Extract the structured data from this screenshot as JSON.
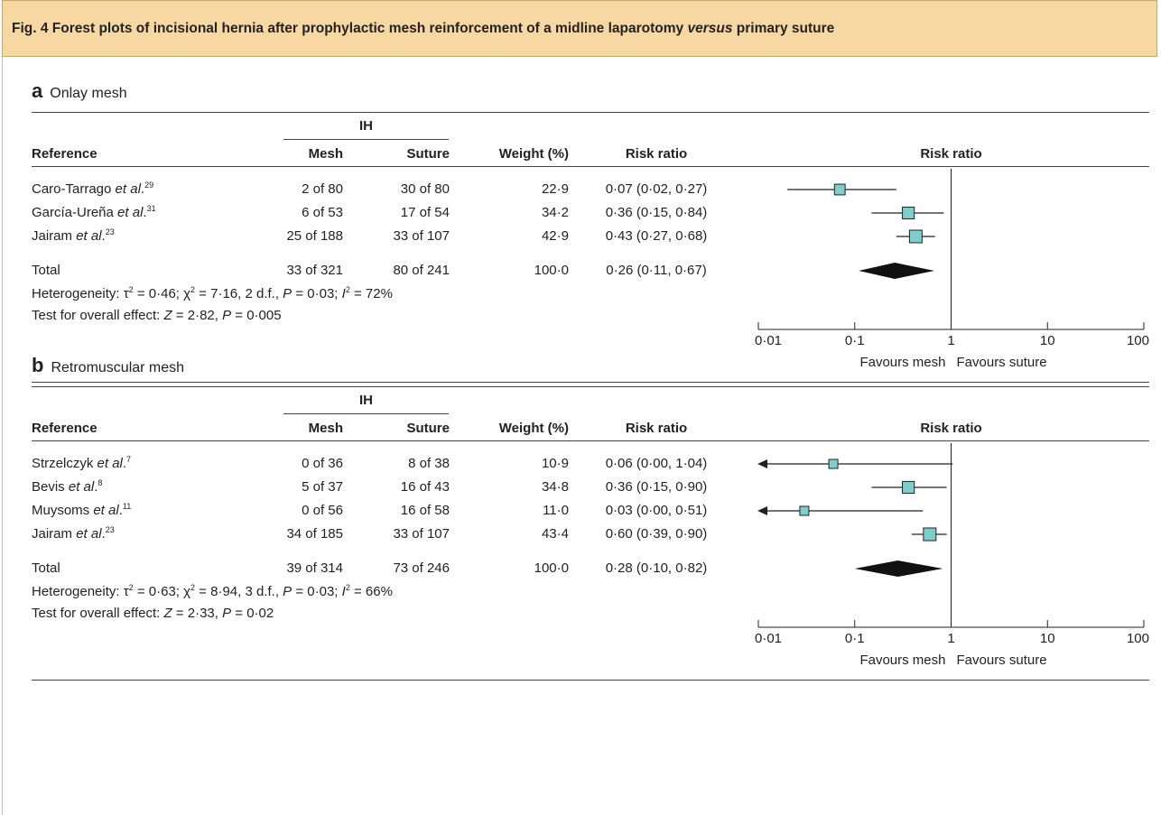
{
  "figure_title": "Fig. 4 Forest plots of incisional hernia after prophylactic mesh reinforcement of a midline laparotomy versus primary suture",
  "colors": {
    "header_band": "#f8d8a2",
    "box_fill": "#7fcdcc",
    "diamond": "#111111"
  },
  "column_headers": {
    "group": "IH",
    "reference": "Reference",
    "mesh": "Mesh",
    "suture": "Suture",
    "weight": "Weight (%)",
    "risk_ratio": "Risk ratio",
    "plot": "Risk ratio"
  },
  "panels": [
    {
      "letter": "a",
      "title": "Onlay mesh",
      "studies": [
        {
          "name": "Caro-Tarrago",
          "ref": "29",
          "mesh": "2 of 80",
          "suture": "30 of 80",
          "weight": "22·9",
          "rr_text": "0·07 (0·02, 0·27)"
        },
        {
          "name": "García-Ureña",
          "ref": "31",
          "mesh": "6 of 53",
          "suture": "17 of 54",
          "weight": "34·2",
          "rr_text": "0·36 (0·15, 0·84)"
        },
        {
          "name": "Jairam",
          "ref": "23",
          "mesh": "25 of 188",
          "suture": "33 of 107",
          "weight": "42·9",
          "rr_text": "0·43 (0·27, 0·68)"
        }
      ],
      "total": {
        "label": "Total",
        "mesh": "33 of 321",
        "suture": "80 of 241",
        "weight": "100·0",
        "rr_text": "0·26 (0·11, 0·67)"
      },
      "heterogeneity": {
        "prefix": "Heterogeneity: τ",
        "tau2": "0·46",
        "chi2": "7·16",
        "df": "2 d.f.",
        "p": "0·03",
        "i2": "72"
      },
      "overall": {
        "prefix": "Test for overall effect: ",
        "z": "2·82",
        "p": "0·005"
      }
    },
    {
      "letter": "b",
      "title": "Retromuscular mesh",
      "studies": [
        {
          "name": "Strzelczyk",
          "ref": "7",
          "mesh": "0 of 36",
          "suture": "8 of 38",
          "weight": "10·9",
          "rr_text": "0·06 (0·00, 1·04)"
        },
        {
          "name": "Bevis",
          "ref": "8",
          "mesh": "5 of 37",
          "suture": "16 of 43",
          "weight": "34·8",
          "rr_text": "0·36 (0·15, 0·90)"
        },
        {
          "name": "Muysoms",
          "ref": "11",
          "mesh": "0 of 56",
          "suture": "16 of 58",
          "weight": "11·0",
          "rr_text": "0·03 (0·00, 0·51)"
        },
        {
          "name": "Jairam",
          "ref": "23",
          "mesh": "34 of 185",
          "suture": "33 of 107",
          "weight": "43·4",
          "rr_text": "0·60 (0·39, 0·90)"
        }
      ],
      "total": {
        "label": "Total",
        "mesh": "39 of 314",
        "suture": "73 of 246",
        "weight": "100·0",
        "rr_text": "0·28 (0·10, 0·82)"
      },
      "heterogeneity": {
        "prefix": "Heterogeneity: τ",
        "tau2": "0·63",
        "chi2": "8·94",
        "df": "3 d.f.",
        "p": "0·03",
        "i2": "66"
      },
      "overall": {
        "prefix": "Test for overall effect: ",
        "z": "2·33",
        "p": "0·02"
      }
    }
  ],
  "chart_data": [
    {
      "type": "scatter",
      "title": "Onlay mesh",
      "xlabel": "Risk ratio",
      "x_scale": "log",
      "xlim": [
        0.01,
        100
      ],
      "xticks": [
        0.01,
        0.1,
        1,
        10,
        100
      ],
      "xtick_labels": [
        "0·01",
        "0·1",
        "1",
        "10",
        "100"
      ],
      "favours": [
        "Favours mesh",
        "Favours suture"
      ],
      "series": [
        {
          "name": "Caro-Tarrago et al.",
          "rr": 0.07,
          "lower": 0.02,
          "upper": 0.27,
          "weight": 22.9
        },
        {
          "name": "García-Ureña et al.",
          "rr": 0.36,
          "lower": 0.15,
          "upper": 0.84,
          "weight": 34.2
        },
        {
          "name": "Jairam et al.",
          "rr": 0.43,
          "lower": 0.27,
          "upper": 0.68,
          "weight": 42.9
        }
      ],
      "pooled": {
        "name": "Total",
        "rr": 0.26,
        "lower": 0.11,
        "upper": 0.67
      }
    },
    {
      "type": "scatter",
      "title": "Retromuscular mesh",
      "xlabel": "Risk ratio",
      "x_scale": "log",
      "xlim": [
        0.01,
        100
      ],
      "xticks": [
        0.01,
        0.1,
        1,
        10,
        100
      ],
      "xtick_labels": [
        "0·01",
        "0·1",
        "1",
        "10",
        "100"
      ],
      "favours": [
        "Favours mesh",
        "Favours suture"
      ],
      "series": [
        {
          "name": "Strzelczyk et al.",
          "rr": 0.06,
          "lower": 0.0,
          "upper": 1.04,
          "weight": 10.9
        },
        {
          "name": "Bevis et al.",
          "rr": 0.36,
          "lower": 0.15,
          "upper": 0.9,
          "weight": 34.8
        },
        {
          "name": "Muysoms et al.",
          "rr": 0.03,
          "lower": 0.0,
          "upper": 0.51,
          "weight": 11.0
        },
        {
          "name": "Jairam et al.",
          "rr": 0.6,
          "lower": 0.39,
          "upper": 0.9,
          "weight": 43.4
        }
      ],
      "pooled": {
        "name": "Total",
        "rr": 0.28,
        "lower": 0.1,
        "upper": 0.82
      }
    }
  ]
}
